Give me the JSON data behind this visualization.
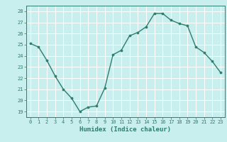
{
  "x": [
    0,
    1,
    2,
    3,
    4,
    5,
    6,
    7,
    8,
    9,
    10,
    11,
    12,
    13,
    14,
    15,
    16,
    17,
    18,
    19,
    20,
    21,
    22,
    23
  ],
  "y": [
    25.1,
    24.8,
    23.6,
    22.2,
    21.0,
    20.2,
    19.0,
    19.4,
    19.5,
    21.1,
    24.1,
    24.5,
    25.8,
    26.1,
    26.6,
    27.8,
    27.8,
    27.2,
    26.9,
    26.7,
    24.8,
    24.3,
    23.5,
    22.5
  ],
  "xlabel": "Humidex (Indice chaleur)",
  "ylim": [
    18.5,
    28.5
  ],
  "xlim": [
    -0.5,
    23.5
  ],
  "yticks": [
    19,
    20,
    21,
    22,
    23,
    24,
    25,
    26,
    27,
    28
  ],
  "xticks": [
    0,
    1,
    2,
    3,
    4,
    5,
    6,
    7,
    8,
    9,
    10,
    11,
    12,
    13,
    14,
    15,
    16,
    17,
    18,
    19,
    20,
    21,
    22,
    23
  ],
  "line_color": "#2e7d6e",
  "marker_color": "#2e7d6e",
  "bg_color": "#c8eeee",
  "grid_color": "#ffffff",
  "label_color": "#2e7d6e",
  "tick_color": "#2e7d6e",
  "spine_color": "#2e7d6e"
}
